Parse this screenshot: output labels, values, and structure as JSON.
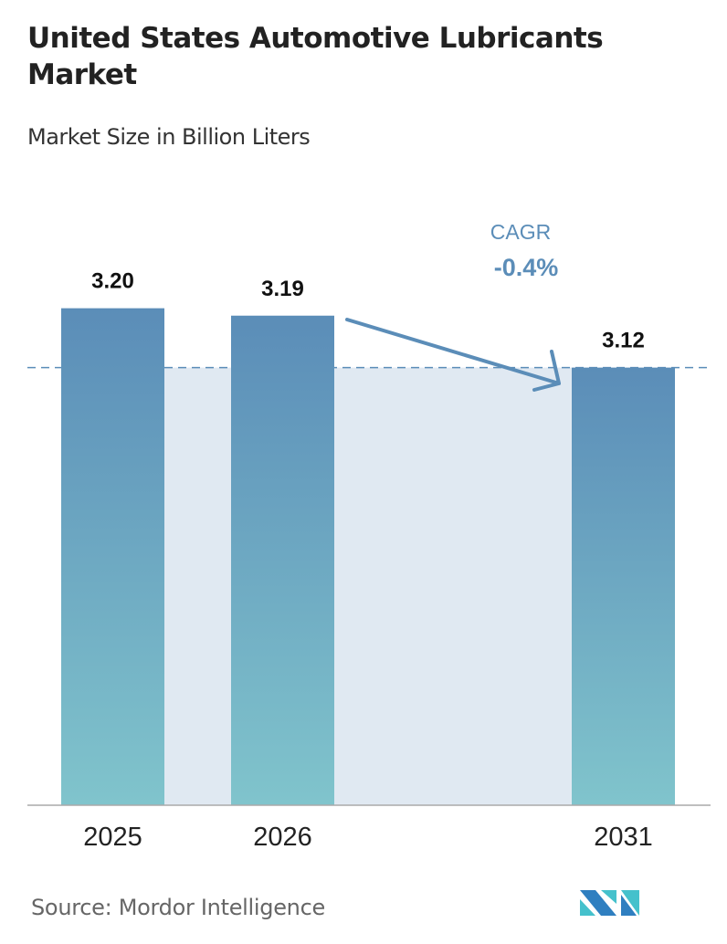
{
  "title": "United States Automotive Lubricants Market",
  "subtitle": "Market Size in Billion Liters",
  "source": "Source:  Mordor Intelligence",
  "logo": {
    "text": "MI",
    "colors": [
      "#2f7fc0",
      "#45c1cc"
    ]
  },
  "colors": {
    "bar_top": "#5b8db8",
    "bar_bottom": "#80c4cc",
    "shade": "#e0e9f2",
    "cagr": "#5b8db8",
    "dashed": "#5b8db8"
  },
  "chart_data": {
    "type": "bar",
    "title": "United States Automotive Lubricants Market",
    "subtitle": "Market Size in Billion Liters",
    "categories": [
      "2025",
      "2026",
      "2031"
    ],
    "values": [
      3.2,
      3.19,
      3.12
    ],
    "value_labels": [
      "3.20",
      "3.19",
      "3.12"
    ],
    "annotation": {
      "label": "CAGR",
      "value": "-0.4%",
      "from": "2026",
      "to": "2031"
    },
    "grid": false,
    "legend": "none"
  }
}
